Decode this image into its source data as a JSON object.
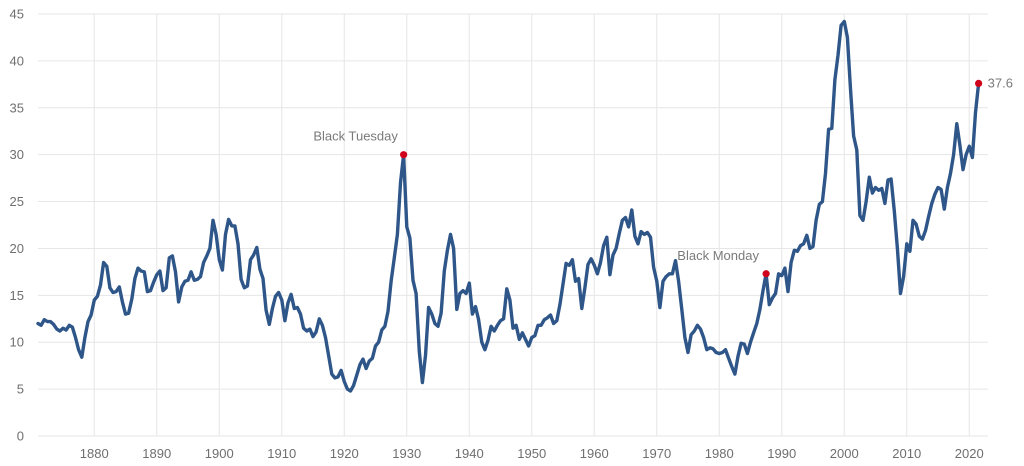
{
  "chart_data": {
    "type": "line",
    "title": "",
    "xlabel": "",
    "ylabel": "",
    "xlim": [
      1871,
      2023
    ],
    "ylim": [
      0,
      45
    ],
    "y_ticks": [
      0,
      5,
      10,
      15,
      20,
      25,
      30,
      35,
      40,
      45
    ],
    "x_ticks": [
      1880,
      1890,
      1900,
      1910,
      1920,
      1930,
      1940,
      1950,
      1960,
      1970,
      1980,
      1990,
      2000,
      2010,
      2020
    ],
    "grid": true,
    "legend": "none",
    "colors": {
      "line": "#2f5689",
      "marker": "#d0021b",
      "grid": "#e6e6e6",
      "text": "#6f6f6f"
    },
    "series": [
      {
        "points": [
          [
            1871.0,
            12.0
          ],
          [
            1871.5,
            11.8
          ],
          [
            1872.0,
            12.4
          ],
          [
            1872.5,
            12.2
          ],
          [
            1873.0,
            12.2
          ],
          [
            1873.5,
            11.9
          ],
          [
            1874.0,
            11.4
          ],
          [
            1874.5,
            11.2
          ],
          [
            1875.0,
            11.5
          ],
          [
            1875.5,
            11.3
          ],
          [
            1876.0,
            11.8
          ],
          [
            1876.5,
            11.6
          ],
          [
            1877.0,
            10.5
          ],
          [
            1877.5,
            9.2
          ],
          [
            1878.0,
            8.4
          ],
          [
            1878.5,
            10.5
          ],
          [
            1879.0,
            12.2
          ],
          [
            1879.5,
            12.9
          ],
          [
            1880.0,
            14.5
          ],
          [
            1880.5,
            14.9
          ],
          [
            1881.0,
            16.1
          ],
          [
            1881.5,
            18.5
          ],
          [
            1882.0,
            18.1
          ],
          [
            1882.5,
            15.8
          ],
          [
            1883.0,
            15.3
          ],
          [
            1883.5,
            15.4
          ],
          [
            1884.0,
            15.9
          ],
          [
            1884.5,
            14.3
          ],
          [
            1885.0,
            13.0
          ],
          [
            1885.5,
            13.1
          ],
          [
            1886.0,
            14.6
          ],
          [
            1886.5,
            16.8
          ],
          [
            1887.0,
            17.9
          ],
          [
            1887.5,
            17.6
          ],
          [
            1888.0,
            17.5
          ],
          [
            1888.5,
            15.4
          ],
          [
            1889.0,
            15.5
          ],
          [
            1889.5,
            16.4
          ],
          [
            1890.0,
            17.2
          ],
          [
            1890.5,
            17.6
          ],
          [
            1891.0,
            15.5
          ],
          [
            1891.5,
            15.8
          ],
          [
            1892.0,
            19.0
          ],
          [
            1892.5,
            19.2
          ],
          [
            1893.0,
            17.5
          ],
          [
            1893.5,
            14.3
          ],
          [
            1894.0,
            15.9
          ],
          [
            1894.5,
            16.5
          ],
          [
            1895.0,
            16.6
          ],
          [
            1895.5,
            17.5
          ],
          [
            1896.0,
            16.6
          ],
          [
            1896.5,
            16.7
          ],
          [
            1897.0,
            17.0
          ],
          [
            1897.5,
            18.5
          ],
          [
            1898.0,
            19.2
          ],
          [
            1898.5,
            20.0
          ],
          [
            1899.0,
            23.0
          ],
          [
            1899.5,
            21.5
          ],
          [
            1900.0,
            18.8
          ],
          [
            1900.5,
            17.7
          ],
          [
            1901.0,
            21.5
          ],
          [
            1901.5,
            23.1
          ],
          [
            1902.0,
            22.4
          ],
          [
            1902.5,
            22.4
          ],
          [
            1903.0,
            20.5
          ],
          [
            1903.5,
            16.7
          ],
          [
            1904.0,
            15.8
          ],
          [
            1904.5,
            16.0
          ],
          [
            1905.0,
            18.8
          ],
          [
            1905.5,
            19.3
          ],
          [
            1906.0,
            20.1
          ],
          [
            1906.5,
            17.8
          ],
          [
            1907.0,
            16.8
          ],
          [
            1907.5,
            13.4
          ],
          [
            1908.0,
            11.9
          ],
          [
            1908.5,
            13.6
          ],
          [
            1909.0,
            14.9
          ],
          [
            1909.5,
            15.3
          ],
          [
            1910.0,
            14.5
          ],
          [
            1910.5,
            12.3
          ],
          [
            1911.0,
            14.2
          ],
          [
            1911.5,
            15.1
          ],
          [
            1912.0,
            13.6
          ],
          [
            1912.5,
            13.7
          ],
          [
            1913.0,
            13.0
          ],
          [
            1913.5,
            11.5
          ],
          [
            1914.0,
            11.2
          ],
          [
            1914.5,
            11.4
          ],
          [
            1915.0,
            10.6
          ],
          [
            1915.5,
            11.1
          ],
          [
            1916.0,
            12.5
          ],
          [
            1916.5,
            11.8
          ],
          [
            1917.0,
            10.5
          ],
          [
            1917.5,
            8.6
          ],
          [
            1918.0,
            6.6
          ],
          [
            1918.5,
            6.2
          ],
          [
            1919.0,
            6.3
          ],
          [
            1919.5,
            7.0
          ],
          [
            1920.0,
            5.8
          ],
          [
            1920.5,
            5.0
          ],
          [
            1921.0,
            4.8
          ],
          [
            1921.5,
            5.4
          ],
          [
            1922.0,
            6.5
          ],
          [
            1922.5,
            7.6
          ],
          [
            1923.0,
            8.2
          ],
          [
            1923.5,
            7.2
          ],
          [
            1924.0,
            8.0
          ],
          [
            1924.5,
            8.3
          ],
          [
            1925.0,
            9.6
          ],
          [
            1925.5,
            10.0
          ],
          [
            1926.0,
            11.3
          ],
          [
            1926.5,
            11.7
          ],
          [
            1927.0,
            13.3
          ],
          [
            1927.5,
            16.5
          ],
          [
            1928.0,
            19.0
          ],
          [
            1928.5,
            21.5
          ],
          [
            1929.0,
            27.0
          ],
          [
            1929.5,
            30.0
          ],
          [
            1930.0,
            22.3
          ],
          [
            1930.5,
            21.1
          ],
          [
            1931.0,
            16.6
          ],
          [
            1931.5,
            15.2
          ],
          [
            1932.0,
            9.0
          ],
          [
            1932.5,
            5.7
          ],
          [
            1933.0,
            8.6
          ],
          [
            1933.5,
            13.7
          ],
          [
            1934.0,
            13.0
          ],
          [
            1934.5,
            12.0
          ],
          [
            1935.0,
            11.7
          ],
          [
            1935.5,
            13.1
          ],
          [
            1936.0,
            17.6
          ],
          [
            1936.5,
            19.8
          ],
          [
            1937.0,
            21.5
          ],
          [
            1937.5,
            20.0
          ],
          [
            1938.0,
            13.5
          ],
          [
            1938.5,
            15.2
          ],
          [
            1939.0,
            15.5
          ],
          [
            1939.5,
            15.2
          ],
          [
            1940.0,
            16.3
          ],
          [
            1940.5,
            13.0
          ],
          [
            1941.0,
            13.8
          ],
          [
            1941.5,
            12.4
          ],
          [
            1942.0,
            10.0
          ],
          [
            1942.5,
            9.2
          ],
          [
            1943.0,
            10.2
          ],
          [
            1943.5,
            11.7
          ],
          [
            1944.0,
            11.2
          ],
          [
            1944.5,
            11.8
          ],
          [
            1945.0,
            12.3
          ],
          [
            1945.5,
            12.5
          ],
          [
            1946.0,
            15.7
          ],
          [
            1946.5,
            14.5
          ],
          [
            1947.0,
            11.5
          ],
          [
            1947.5,
            11.8
          ],
          [
            1948.0,
            10.3
          ],
          [
            1948.5,
            11.0
          ],
          [
            1949.0,
            10.3
          ],
          [
            1949.5,
            9.6
          ],
          [
            1950.0,
            10.5
          ],
          [
            1950.5,
            10.7
          ],
          [
            1951.0,
            11.8
          ],
          [
            1951.5,
            11.8
          ],
          [
            1952.0,
            12.4
          ],
          [
            1952.5,
            12.6
          ],
          [
            1953.0,
            12.9
          ],
          [
            1953.5,
            12.0
          ],
          [
            1954.0,
            12.3
          ],
          [
            1954.5,
            14.0
          ],
          [
            1955.0,
            16.2
          ],
          [
            1955.5,
            18.4
          ],
          [
            1956.0,
            18.2
          ],
          [
            1956.5,
            18.8
          ],
          [
            1957.0,
            16.5
          ],
          [
            1957.5,
            16.8
          ],
          [
            1958.0,
            13.6
          ],
          [
            1958.5,
            15.8
          ],
          [
            1959.0,
            18.3
          ],
          [
            1959.5,
            18.9
          ],
          [
            1960.0,
            18.2
          ],
          [
            1960.5,
            17.3
          ],
          [
            1961.0,
            18.5
          ],
          [
            1961.5,
            20.3
          ],
          [
            1962.0,
            21.2
          ],
          [
            1962.5,
            17.2
          ],
          [
            1963.0,
            19.3
          ],
          [
            1963.5,
            20.0
          ],
          [
            1964.0,
            21.6
          ],
          [
            1964.5,
            23.0
          ],
          [
            1965.0,
            23.3
          ],
          [
            1965.5,
            22.3
          ],
          [
            1966.0,
            24.1
          ],
          [
            1966.5,
            21.3
          ],
          [
            1967.0,
            20.5
          ],
          [
            1967.5,
            21.8
          ],
          [
            1968.0,
            21.5
          ],
          [
            1968.5,
            21.7
          ],
          [
            1969.0,
            21.2
          ],
          [
            1969.5,
            18.0
          ],
          [
            1970.0,
            16.5
          ],
          [
            1970.5,
            13.7
          ],
          [
            1971.0,
            16.5
          ],
          [
            1971.5,
            17.0
          ],
          [
            1972.0,
            17.3
          ],
          [
            1972.5,
            17.3
          ],
          [
            1973.0,
            18.7
          ],
          [
            1973.5,
            16.5
          ],
          [
            1974.0,
            13.5
          ],
          [
            1974.5,
            10.5
          ],
          [
            1975.0,
            8.9
          ],
          [
            1975.5,
            10.8
          ],
          [
            1976.0,
            11.2
          ],
          [
            1976.5,
            11.8
          ],
          [
            1977.0,
            11.4
          ],
          [
            1977.5,
            10.5
          ],
          [
            1978.0,
            9.2
          ],
          [
            1978.5,
            9.4
          ],
          [
            1979.0,
            9.3
          ],
          [
            1979.5,
            8.9
          ],
          [
            1980.0,
            8.8
          ],
          [
            1980.5,
            8.9
          ],
          [
            1981.0,
            9.2
          ],
          [
            1981.5,
            8.3
          ],
          [
            1982.0,
            7.4
          ],
          [
            1982.5,
            6.6
          ],
          [
            1983.0,
            8.5
          ],
          [
            1983.5,
            9.9
          ],
          [
            1984.0,
            9.8
          ],
          [
            1984.5,
            8.8
          ],
          [
            1985.0,
            10.0
          ],
          [
            1985.5,
            11.0
          ],
          [
            1986.0,
            12.0
          ],
          [
            1986.5,
            13.5
          ],
          [
            1987.0,
            15.5
          ],
          [
            1987.5,
            17.3
          ],
          [
            1988.0,
            14.0
          ],
          [
            1988.5,
            14.7
          ],
          [
            1989.0,
            15.2
          ],
          [
            1989.5,
            17.3
          ],
          [
            1990.0,
            17.1
          ],
          [
            1990.5,
            17.9
          ],
          [
            1991.0,
            15.4
          ],
          [
            1991.5,
            18.5
          ],
          [
            1992.0,
            19.8
          ],
          [
            1992.5,
            19.7
          ],
          [
            1993.0,
            20.3
          ],
          [
            1993.5,
            20.5
          ],
          [
            1994.0,
            21.4
          ],
          [
            1994.5,
            20.0
          ],
          [
            1995.0,
            20.2
          ],
          [
            1995.5,
            23.0
          ],
          [
            1996.0,
            24.7
          ],
          [
            1996.5,
            25.0
          ],
          [
            1997.0,
            28.0
          ],
          [
            1997.5,
            32.7
          ],
          [
            1998.0,
            32.8
          ],
          [
            1998.5,
            38.0
          ],
          [
            1999.0,
            40.6
          ],
          [
            1999.5,
            43.8
          ],
          [
            2000.0,
            44.2
          ],
          [
            2000.5,
            42.5
          ],
          [
            2001.0,
            37.0
          ],
          [
            2001.5,
            32.0
          ],
          [
            2002.0,
            30.5
          ],
          [
            2002.5,
            23.5
          ],
          [
            2003.0,
            23.0
          ],
          [
            2003.5,
            25.0
          ],
          [
            2004.0,
            27.6
          ],
          [
            2004.5,
            25.9
          ],
          [
            2005.0,
            26.5
          ],
          [
            2005.5,
            26.2
          ],
          [
            2006.0,
            26.4
          ],
          [
            2006.5,
            24.8
          ],
          [
            2007.0,
            27.3
          ],
          [
            2007.5,
            27.4
          ],
          [
            2008.0,
            24.0
          ],
          [
            2008.5,
            20.0
          ],
          [
            2009.0,
            15.2
          ],
          [
            2009.5,
            17.0
          ],
          [
            2010.0,
            20.5
          ],
          [
            2010.5,
            19.7
          ],
          [
            2011.0,
            23.0
          ],
          [
            2011.5,
            22.6
          ],
          [
            2012.0,
            21.3
          ],
          [
            2012.5,
            21.0
          ],
          [
            2013.0,
            21.9
          ],
          [
            2013.5,
            23.4
          ],
          [
            2014.0,
            24.8
          ],
          [
            2014.5,
            25.8
          ],
          [
            2015.0,
            26.5
          ],
          [
            2015.5,
            26.3
          ],
          [
            2016.0,
            24.2
          ],
          [
            2016.5,
            26.5
          ],
          [
            2017.0,
            28.0
          ],
          [
            2017.5,
            30.0
          ],
          [
            2018.0,
            33.3
          ],
          [
            2018.5,
            31.0
          ],
          [
            2019.0,
            28.4
          ],
          [
            2019.5,
            30.0
          ],
          [
            2020.0,
            30.9
          ],
          [
            2020.5,
            29.7
          ],
          [
            2021.0,
            34.5
          ],
          [
            2021.5,
            37.6
          ]
        ]
      }
    ],
    "annotations": [
      {
        "text": "Black Tuesday",
        "x": 1929.5,
        "y": 30.0
      },
      {
        "text": "Black Monday",
        "x": 1987.5,
        "y": 17.3
      },
      {
        "text": "37.6",
        "x": 2021.5,
        "y": 37.6
      }
    ]
  }
}
